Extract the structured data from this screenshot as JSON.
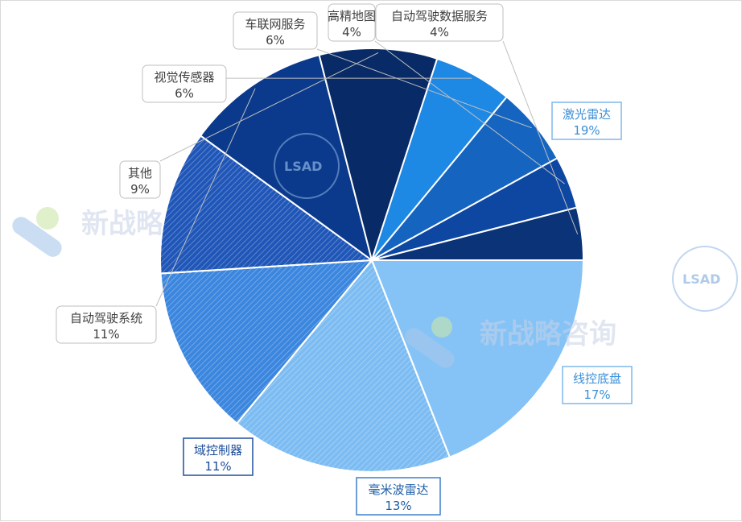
{
  "chart_data": {
    "type": "pie",
    "title": "",
    "slices": [
      {
        "label": "激光雷达",
        "pct_label": "19%",
        "value": 19,
        "color": "#85c3f7",
        "pattern": false,
        "label_color": "#3a8fd8",
        "box_stroke": "#7fb8ea"
      },
      {
        "label": "线控底盘",
        "pct_label": "17%",
        "value": 17,
        "color": "#7cbcf2",
        "pattern": true,
        "label_color": "#3a8fd8",
        "box_stroke": "#7fb8ea"
      },
      {
        "label": "毫米波雷达",
        "pct_label": "13%",
        "value": 13,
        "color": "#3b86de",
        "pattern": true,
        "label_color": "#1f5fa8",
        "box_stroke": "#3f7fcc"
      },
      {
        "label": "域控制器",
        "pct_label": "11%",
        "value": 11,
        "color": "#1f56b8",
        "pattern": true,
        "label_color": "#1a4c9a",
        "box_stroke": "#1d4f9e"
      },
      {
        "label": "自动驾驶系统",
        "pct_label": "11%",
        "value": 11,
        "color": "#0b3a8c",
        "pattern": false,
        "label_color": "#404040",
        "box_stroke": "#bfbfbf"
      },
      {
        "label": "其他",
        "pct_label": "9%",
        "value": 9,
        "color": "#082a66",
        "pattern": false,
        "label_color": "#404040",
        "box_stroke": "#bfbfbf"
      },
      {
        "label": "视觉传感器",
        "pct_label": "6%",
        "value": 6,
        "color": "#1e88e5",
        "pattern": false,
        "label_color": "#404040",
        "box_stroke": "#bfbfbf"
      },
      {
        "label": "车联网服务",
        "pct_label": "6%",
        "value": 6,
        "color": "#1565c0",
        "pattern": false,
        "label_color": "#404040",
        "box_stroke": "#bfbfbf"
      },
      {
        "label": "高精地图",
        "pct_label": "4%",
        "value": 4,
        "color": "#0d47a1",
        "pattern": false,
        "label_color": "#404040",
        "box_stroke": "#bfbfbf"
      },
      {
        "label": "自动驾驶数据服务",
        "pct_label": "4%",
        "value": 4,
        "color": "#0a3477",
        "pattern": false,
        "label_color": "#404040",
        "box_stroke": "#bfbfbf"
      }
    ]
  },
  "watermark": {
    "text": "新战略咨询",
    "badge_text": "LSAD"
  }
}
